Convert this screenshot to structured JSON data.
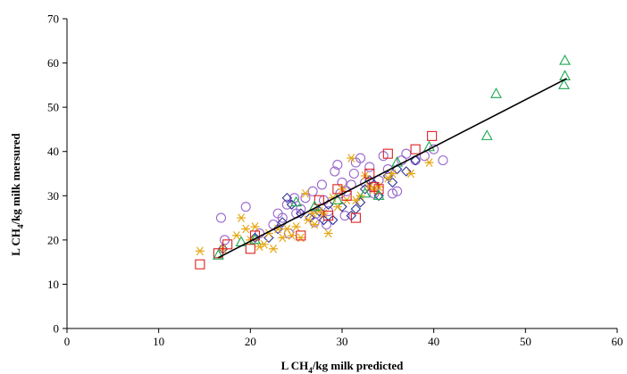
{
  "chart_data": {
    "type": "scatter",
    "xlabel": {
      "pre": "L CH",
      "sub": "4",
      "post": "/kg milk predicted"
    },
    "ylabel": {
      "pre": "L CH",
      "sub": "4",
      "post": "/kg milk mersured"
    },
    "xlim": [
      0,
      60
    ],
    "ylim": [
      0,
      70
    ],
    "xticks": [
      0,
      10,
      20,
      30,
      40,
      50,
      60
    ],
    "yticks": [
      0,
      10,
      20,
      30,
      40,
      50,
      60,
      70
    ],
    "grid": false,
    "legend": "none",
    "series": [
      {
        "marker": "circle",
        "color": "#9966CC",
        "points": [
          [
            16.8,
            25.0
          ],
          [
            17.2,
            20.0
          ],
          [
            19.5,
            27.5
          ],
          [
            21.0,
            21.5
          ],
          [
            22.5,
            23.5
          ],
          [
            23.0,
            26.0
          ],
          [
            23.5,
            25.0
          ],
          [
            24.0,
            28.0
          ],
          [
            24.2,
            21.5
          ],
          [
            24.8,
            29.5
          ],
          [
            25.0,
            26.0
          ],
          [
            25.5,
            27.0
          ],
          [
            26.0,
            29.5
          ],
          [
            26.8,
            31.0
          ],
          [
            27.0,
            24.0
          ],
          [
            27.2,
            26.0
          ],
          [
            27.8,
            32.5
          ],
          [
            28.0,
            29.0
          ],
          [
            28.3,
            23.5
          ],
          [
            28.5,
            26.5
          ],
          [
            29.2,
            35.5
          ],
          [
            29.5,
            37.0
          ],
          [
            29.8,
            30.5
          ],
          [
            30.0,
            33.0
          ],
          [
            30.3,
            25.5
          ],
          [
            30.5,
            31.0
          ],
          [
            31.0,
            32.5
          ],
          [
            31.3,
            35.0
          ],
          [
            31.5,
            37.5
          ],
          [
            32.0,
            38.5
          ],
          [
            32.5,
            33.0
          ],
          [
            33.0,
            36.5
          ],
          [
            33.5,
            30.5
          ],
          [
            34.0,
            33.5
          ],
          [
            34.5,
            39.0
          ],
          [
            35.0,
            36.0
          ],
          [
            35.5,
            30.5
          ],
          [
            36.0,
            31.0
          ],
          [
            36.5,
            38.0
          ],
          [
            37.0,
            39.5
          ],
          [
            38.0,
            38.0
          ],
          [
            39.0,
            39.0
          ],
          [
            40.0,
            40.5
          ],
          [
            41.0,
            38.0
          ]
        ]
      },
      {
        "marker": "diamond",
        "color": "#333399",
        "points": [
          [
            17.0,
            18.0
          ],
          [
            20.5,
            20.5
          ],
          [
            22.0,
            20.5
          ],
          [
            23.0,
            22.5
          ],
          [
            23.5,
            24.0
          ],
          [
            24.0,
            29.5
          ],
          [
            24.5,
            28.0
          ],
          [
            25.5,
            26.0
          ],
          [
            26.5,
            25.0
          ],
          [
            27.5,
            26.5
          ],
          [
            28.0,
            24.5
          ],
          [
            28.5,
            28.0
          ],
          [
            29.0,
            24.5
          ],
          [
            30.0,
            27.5
          ],
          [
            31.0,
            25.5
          ],
          [
            31.5,
            27.0
          ],
          [
            32.0,
            28.5
          ],
          [
            32.5,
            31.5
          ],
          [
            33.0,
            33.5
          ],
          [
            33.5,
            32.5
          ],
          [
            34.0,
            30.0
          ],
          [
            35.0,
            34.5
          ],
          [
            35.5,
            33.0
          ],
          [
            36.0,
            36.0
          ],
          [
            37.0,
            35.5
          ],
          [
            38.0,
            38.0
          ]
        ]
      },
      {
        "marker": "star",
        "color": "#E6A817",
        "points": [
          [
            14.5,
            17.5
          ],
          [
            17.0,
            18.0
          ],
          [
            18.5,
            21.0
          ],
          [
            19.0,
            25.0
          ],
          [
            19.5,
            22.5
          ],
          [
            20.0,
            20.0
          ],
          [
            20.5,
            23.0
          ],
          [
            21.0,
            18.5
          ],
          [
            21.5,
            19.0
          ],
          [
            22.0,
            21.5
          ],
          [
            22.5,
            18.0
          ],
          [
            23.0,
            22.5
          ],
          [
            23.5,
            20.5
          ],
          [
            24.0,
            22.5
          ],
          [
            24.5,
            21.0
          ],
          [
            25.0,
            23.0
          ],
          [
            25.5,
            20.5
          ],
          [
            26.0,
            30.5
          ],
          [
            26.3,
            24.5
          ],
          [
            26.8,
            26.0
          ],
          [
            27.0,
            23.5
          ],
          [
            27.5,
            26.5
          ],
          [
            28.0,
            26.0
          ],
          [
            28.5,
            21.5
          ],
          [
            29.0,
            29.5
          ],
          [
            29.5,
            27.5
          ],
          [
            30.0,
            31.5
          ],
          [
            30.5,
            29.0
          ],
          [
            31.0,
            38.5
          ],
          [
            31.5,
            29.0
          ],
          [
            32.0,
            30.0
          ],
          [
            32.5,
            34.5
          ],
          [
            33.0,
            32.0
          ],
          [
            33.5,
            31.5
          ],
          [
            34.0,
            32.0
          ],
          [
            35.0,
            34.0
          ],
          [
            35.5,
            35.0
          ],
          [
            37.5,
            35.0
          ],
          [
            39.5,
            37.5
          ]
        ]
      },
      {
        "marker": "square",
        "color": "#E02020",
        "points": [
          [
            14.5,
            14.5
          ],
          [
            16.5,
            17.0
          ],
          [
            17.5,
            19.0
          ],
          [
            20.0,
            18.0
          ],
          [
            20.5,
            21.0
          ],
          [
            25.5,
            21.0
          ],
          [
            27.5,
            29.0
          ],
          [
            28.5,
            25.5
          ],
          [
            29.5,
            31.5
          ],
          [
            30.5,
            30.0
          ],
          [
            31.5,
            25.0
          ],
          [
            33.0,
            35.0
          ],
          [
            33.5,
            32.0
          ],
          [
            34.0,
            31.5
          ],
          [
            35.0,
            39.5
          ],
          [
            38.0,
            40.5
          ],
          [
            39.8,
            43.5
          ]
        ]
      },
      {
        "marker": "triangle",
        "color": "#1DA84F",
        "points": [
          [
            16.5,
            16.5
          ],
          [
            19.0,
            19.5
          ],
          [
            20.5,
            20.0
          ],
          [
            25.0,
            28.5
          ],
          [
            27.0,
            27.5
          ],
          [
            29.5,
            29.0
          ],
          [
            32.5,
            30.5
          ],
          [
            34.0,
            30.0
          ],
          [
            36.0,
            37.5
          ],
          [
            39.5,
            41.0
          ],
          [
            45.8,
            43.5
          ],
          [
            46.8,
            53.0
          ],
          [
            54.2,
            55.0
          ],
          [
            54.3,
            57.0
          ],
          [
            54.3,
            60.5
          ]
        ]
      }
    ],
    "trendline": {
      "x": [
        16.5,
        54.5
      ],
      "y": [
        16.0,
        56.5
      ],
      "color": "#000000"
    }
  }
}
